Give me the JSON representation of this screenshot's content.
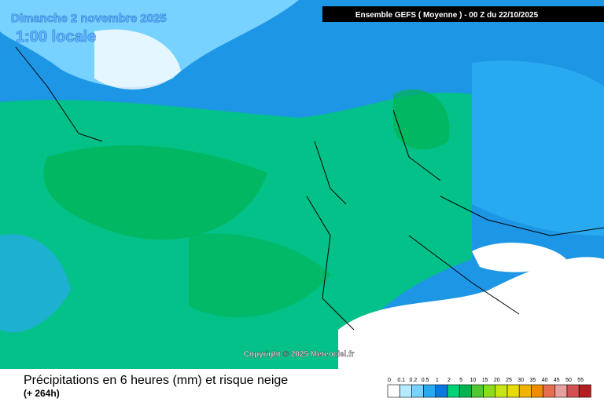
{
  "header": {
    "date": "Dimanche 2 novembre 2025",
    "time": "1:00 locale",
    "model": "Ensemble GEFS  ( Moyenne )  -  00 Z du 22/10/2025"
  },
  "copyright": "Copyright © 2025 Meteociel.fr",
  "footer": {
    "title": "Précipitations en 6 heures (mm) et risque neige",
    "subtitle": "(+ 264h)"
  },
  "legend": [
    {
      "label": "0",
      "color": "#ffffff"
    },
    {
      "label": "0.1",
      "color": "#b4ebff"
    },
    {
      "label": "0.2",
      "color": "#78d2ff"
    },
    {
      "label": "0.5",
      "color": "#28aaf0"
    },
    {
      "label": "1",
      "color": "#0a78dc"
    },
    {
      "label": "2",
      "color": "#00d278"
    },
    {
      "label": "5",
      "color": "#00b450"
    },
    {
      "label": "10",
      "color": "#50c832"
    },
    {
      "label": "15",
      "color": "#8cdc1e"
    },
    {
      "label": "20",
      "color": "#c8e614"
    },
    {
      "label": "25",
      "color": "#e6dc00"
    },
    {
      "label": "30",
      "color": "#f0b400"
    },
    {
      "label": "35",
      "color": "#f08c00"
    },
    {
      "label": "40",
      "color": "#e66e50"
    },
    {
      "label": "45",
      "color": "#e6a0a0"
    },
    {
      "label": "50",
      "color": "#d25050"
    },
    {
      "label": "55",
      "color": "#b41e1e"
    }
  ]
}
